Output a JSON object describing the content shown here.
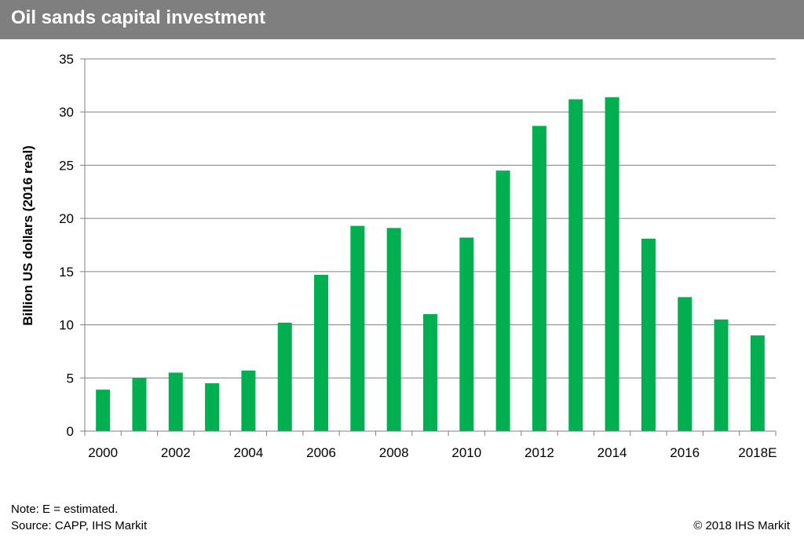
{
  "header": {
    "title": "Oil sands capital investment"
  },
  "footer": {
    "note": "Note: E = estimated.",
    "source": "Source:  CAPP, IHS Markit",
    "copyright": "© 2018  IHS Markit"
  },
  "colors": {
    "bar": "#00b050",
    "header_bg": "#7f7f7f",
    "grid": "#808080"
  },
  "chart_data": {
    "type": "bar",
    "title": "",
    "xlabel": "",
    "ylabel": "Billion US dollars (2016 real)",
    "ylim": [
      0,
      35
    ],
    "yticks": [
      0,
      5,
      10,
      15,
      20,
      25,
      30,
      35
    ],
    "grid": true,
    "categories": [
      "2000",
      "2001",
      "2002",
      "2003",
      "2004",
      "2005",
      "2006",
      "2007",
      "2008",
      "2009",
      "2010",
      "2011",
      "2012",
      "2013",
      "2014",
      "2015",
      "2016",
      "2017",
      "2018E"
    ],
    "x_tick_labels": [
      "2000",
      "",
      "2002",
      "",
      "2004",
      "",
      "2006",
      "",
      "2008",
      "",
      "2010",
      "",
      "2012",
      "",
      "2014",
      "",
      "2016",
      "",
      "2018E"
    ],
    "values": [
      3.9,
      5.0,
      5.5,
      4.5,
      5.7,
      10.2,
      14.7,
      19.3,
      19.1,
      11.0,
      18.2,
      24.5,
      28.7,
      31.2,
      31.4,
      18.1,
      12.6,
      10.5,
      9.0
    ]
  }
}
